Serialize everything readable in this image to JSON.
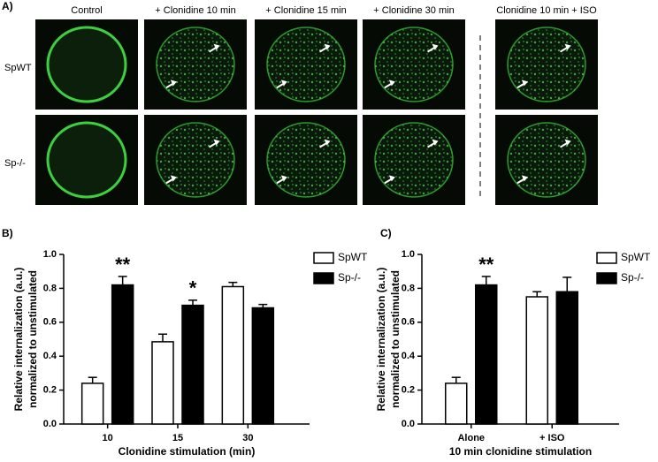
{
  "panel_a": {
    "label": "A)",
    "columns": [
      "Control",
      "+ Clonidine 10 min",
      "+ Clonidine 15 min",
      "+ Clonidine 30 min",
      "Clonidine 10 min + ISO"
    ],
    "rows": [
      "SpWT",
      "Sp-/-"
    ]
  },
  "chart_data": [
    {
      "type": "bar",
      "label": "B)",
      "x_label": "Clonidine stimulation (min)",
      "y_label": [
        "Relative internalization (a.u.)",
        "normalized to unstimulated"
      ],
      "categories": [
        "10",
        "15",
        "30"
      ],
      "series": [
        {
          "name": "SpWT",
          "color": "#ffffff",
          "values": [
            0.24,
            0.485,
            0.81
          ],
          "errors": [
            0.035,
            0.045,
            0.025
          ]
        },
        {
          "name": "Sp-/-",
          "color": "#000000",
          "values": [
            0.82,
            0.7,
            0.685
          ],
          "errors": [
            0.05,
            0.03,
            0.02
          ]
        }
      ],
      "annotations": [
        {
          "text": "**",
          "category": "10",
          "series": "Sp-/-"
        },
        {
          "text": "*",
          "category": "15",
          "series": "Sp-/-"
        }
      ],
      "ylim": [
        0,
        1
      ],
      "yticks": [
        {
          "value": 0,
          "label": "0.0"
        },
        0.2,
        0.4,
        0.6,
        0.8,
        {
          "value": 1,
          "label": "1.0"
        }
      ],
      "legend": "upper right"
    },
    {
      "type": "bar",
      "label": "C)",
      "x_label": "10 min clonidine stimulation",
      "y_label": [
        "Relative internalization (a.u.)",
        "normalized to unstimulated"
      ],
      "categories": [
        "Alone",
        "+ ISO"
      ],
      "series": [
        {
          "name": "SpWT",
          "color": "#ffffff",
          "values": [
            0.24,
            0.75
          ],
          "errors": [
            0.035,
            0.03
          ]
        },
        {
          "name": "Sp-/-",
          "color": "#000000",
          "values": [
            0.82,
            0.78
          ],
          "errors": [
            0.05,
            0.085
          ]
        }
      ],
      "annotations": [
        {
          "text": "**",
          "category": "Alone",
          "series": "Sp-/-"
        }
      ],
      "ylim": [
        0,
        1
      ],
      "yticks": [
        {
          "value": 0,
          "label": "0.0"
        },
        0.2,
        0.4,
        0.6,
        0.8,
        {
          "value": 1,
          "label": "1.0"
        }
      ],
      "legend": "upper right"
    }
  ]
}
